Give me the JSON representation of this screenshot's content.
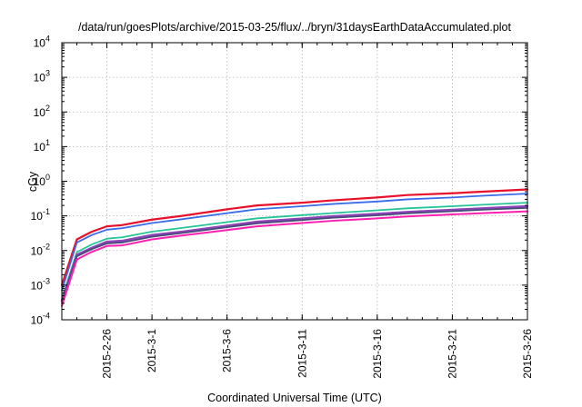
{
  "chart_data": {
    "type": "line",
    "title": "/data/run/goesPlots/archive/2015-03-25/flux/../bryn/31daysEarthDataAccumulated.plot",
    "xlabel": "Coordinated Universal Time (UTC)",
    "ylabel": "cGy",
    "y_scale": "log",
    "ylim": [
      0.0001,
      10000
    ],
    "xlim": [
      "2015-02-23",
      "2015-03-26"
    ],
    "y_ticks": [
      {
        "value": 0.0001,
        "base": "10",
        "exp": "-4"
      },
      {
        "value": 0.001,
        "base": "10",
        "exp": "-3"
      },
      {
        "value": 0.01,
        "base": "10",
        "exp": "-2"
      },
      {
        "value": 0.1,
        "base": "10",
        "exp": "-1"
      },
      {
        "value": 1,
        "base": "10",
        "exp": "0"
      },
      {
        "value": 10,
        "base": "10",
        "exp": "1"
      },
      {
        "value": 100,
        "base": "10",
        "exp": "2"
      },
      {
        "value": 1000,
        "base": "10",
        "exp": "3"
      },
      {
        "value": 10000,
        "base": "10",
        "exp": "4"
      }
    ],
    "x_ticks": [
      "2015-2-26",
      "2015-3-1",
      "2015-3-6",
      "2015-3-11",
      "2015-3-16",
      "2015-3-21",
      "2015-3-26"
    ],
    "grid": true,
    "x": [
      "2015-02-23",
      "2015-02-24",
      "2015-02-25",
      "2015-02-26",
      "2015-02-27",
      "2015-03-01",
      "2015-03-03",
      "2015-03-06",
      "2015-03-08",
      "2015-03-11",
      "2015-03-13",
      "2015-03-16",
      "2015-03-18",
      "2015-03-21",
      "2015-03-23",
      "2015-03-26"
    ],
    "series": [
      {
        "color": "#e8102a",
        "width": 2.2,
        "values": [
          0.001,
          0.021,
          0.035,
          0.05,
          0.054,
          0.078,
          0.1,
          0.155,
          0.2,
          0.24,
          0.28,
          0.34,
          0.4,
          0.45,
          0.5,
          0.58
        ]
      },
      {
        "color": "#3a6be8",
        "width": 1.8,
        "values": [
          0.0007,
          0.017,
          0.028,
          0.04,
          0.044,
          0.062,
          0.08,
          0.12,
          0.155,
          0.19,
          0.22,
          0.26,
          0.3,
          0.34,
          0.38,
          0.44
        ]
      },
      {
        "color": "#27c49a",
        "width": 1.8,
        "values": [
          0.0004,
          0.009,
          0.015,
          0.022,
          0.024,
          0.035,
          0.045,
          0.066,
          0.085,
          0.105,
          0.12,
          0.145,
          0.165,
          0.19,
          0.21,
          0.24
        ]
      },
      {
        "color": "#8e44b8",
        "width": 2.4,
        "values": [
          0.00035,
          0.0075,
          0.012,
          0.018,
          0.019,
          0.028,
          0.035,
          0.052,
          0.068,
          0.084,
          0.097,
          0.115,
          0.13,
          0.15,
          0.165,
          0.19
        ]
      },
      {
        "color": "#4a4a7a",
        "width": 1.8,
        "values": [
          0.0003,
          0.0068,
          0.011,
          0.016,
          0.017,
          0.025,
          0.032,
          0.047,
          0.061,
          0.076,
          0.088,
          0.104,
          0.118,
          0.136,
          0.15,
          0.17
        ]
      },
      {
        "color": "#ff20b0",
        "width": 2.0,
        "values": [
          0.00025,
          0.0055,
          0.0092,
          0.0135,
          0.014,
          0.021,
          0.027,
          0.039,
          0.05,
          0.062,
          0.072,
          0.085,
          0.096,
          0.11,
          0.12,
          0.135
        ]
      }
    ]
  }
}
